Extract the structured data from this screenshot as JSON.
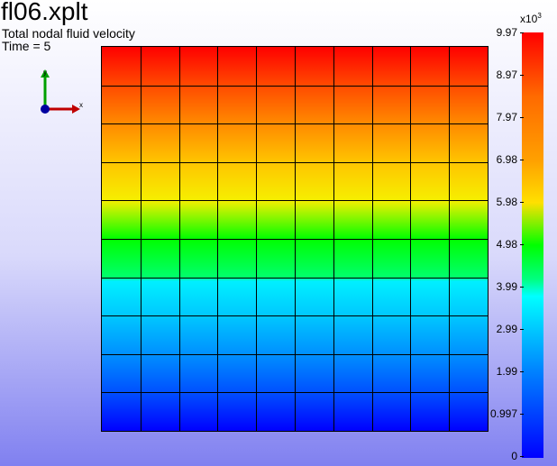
{
  "header": {
    "filename": "fl06.xplt",
    "variable": "Total nodal fluid velocity",
    "time": "Time = 5"
  },
  "triad": {
    "x_label": "x",
    "y_label": "y"
  },
  "colorbar": {
    "multiplier": "x10",
    "exponent": "3",
    "ticks": [
      "9.97",
      "8.97",
      "7.97",
      "6.98",
      "5.98",
      "4.98",
      "3.99",
      "2.99",
      "1.99",
      "0.997",
      "0"
    ]
  },
  "mesh": {
    "rows": 10,
    "cols": 10
  },
  "colors": {
    "max": "#ff0000",
    "mid": "#00ff00",
    "min": "#0000ff"
  }
}
